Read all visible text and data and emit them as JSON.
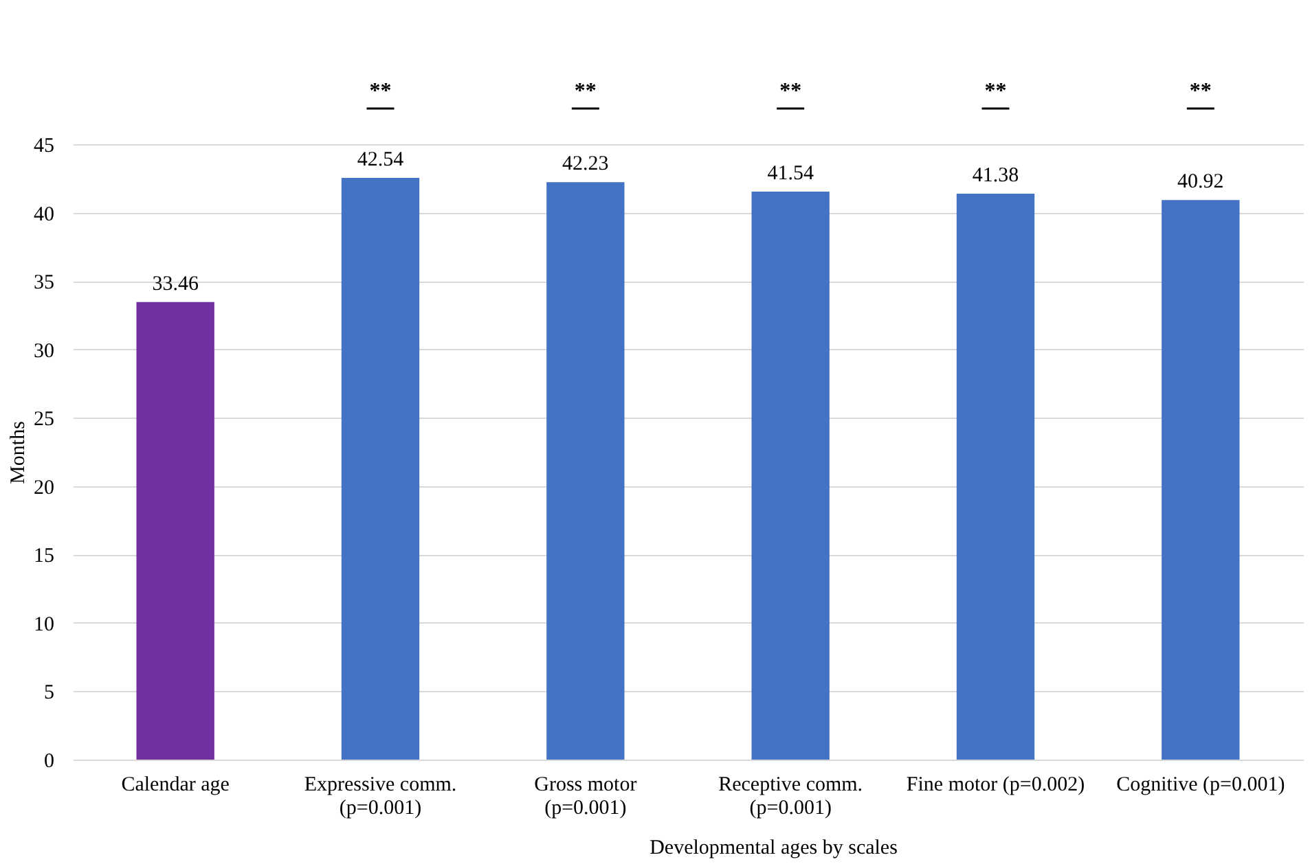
{
  "chart_data": {
    "type": "bar",
    "ylabel": "Months",
    "xlabel": "Developmental ages by scales",
    "categories": [
      "Calendar age",
      "Expressive comm. (p=0.001)",
      "Gross motor (p=0.001)",
      "Receptive comm. (p=0.001)",
      "Fine motor (p=0.002)",
      "Cognitive (p=0.001)"
    ],
    "values": [
      33.46,
      42.54,
      42.23,
      41.54,
      41.38,
      40.92
    ],
    "colors": [
      "#7030a0",
      "#4472c4",
      "#4472c4",
      "#4472c4",
      "#4472c4",
      "#4472c4"
    ],
    "ylim": [
      0,
      45
    ],
    "yticks": [
      0,
      5,
      10,
      15,
      20,
      25,
      30,
      35,
      40,
      45
    ],
    "grid": "y",
    "data_labels": true,
    "legend": false,
    "annotations": [
      "**",
      "**",
      "**",
      "**",
      "**"
    ]
  }
}
